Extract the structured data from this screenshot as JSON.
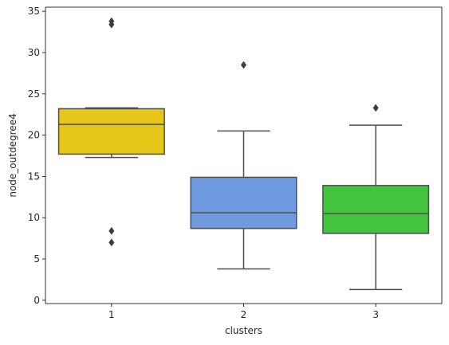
{
  "chart_data": {
    "type": "box",
    "xlabel": "clusters",
    "ylabel": "node_outdegree4",
    "ylim": [
      -0.4,
      35.5
    ],
    "yticks": [
      0,
      5,
      10,
      15,
      20,
      25,
      30,
      35
    ],
    "grid": false,
    "categories": [
      "1",
      "2",
      "3"
    ],
    "boxes": [
      {
        "category": "1",
        "color": "#E6C619",
        "whislo": 17.3,
        "q1": 17.7,
        "med": 21.3,
        "q3": 23.2,
        "whishi": 23.3,
        "fliers": [
          33.8,
          33.4,
          8.4,
          7.0
        ]
      },
      {
        "category": "2",
        "color": "#6F9AE0",
        "whislo": 3.8,
        "q1": 8.7,
        "med": 10.6,
        "q3": 14.9,
        "whishi": 20.5,
        "fliers": [
          28.5
        ]
      },
      {
        "category": "3",
        "color": "#43C43F",
        "whislo": 1.3,
        "q1": 8.1,
        "med": 10.5,
        "q3": 13.9,
        "whishi": 21.2,
        "fliers": [
          23.3
        ]
      }
    ],
    "line_color": "#4D4D4D",
    "flier_color": "#3D3D3D"
  }
}
